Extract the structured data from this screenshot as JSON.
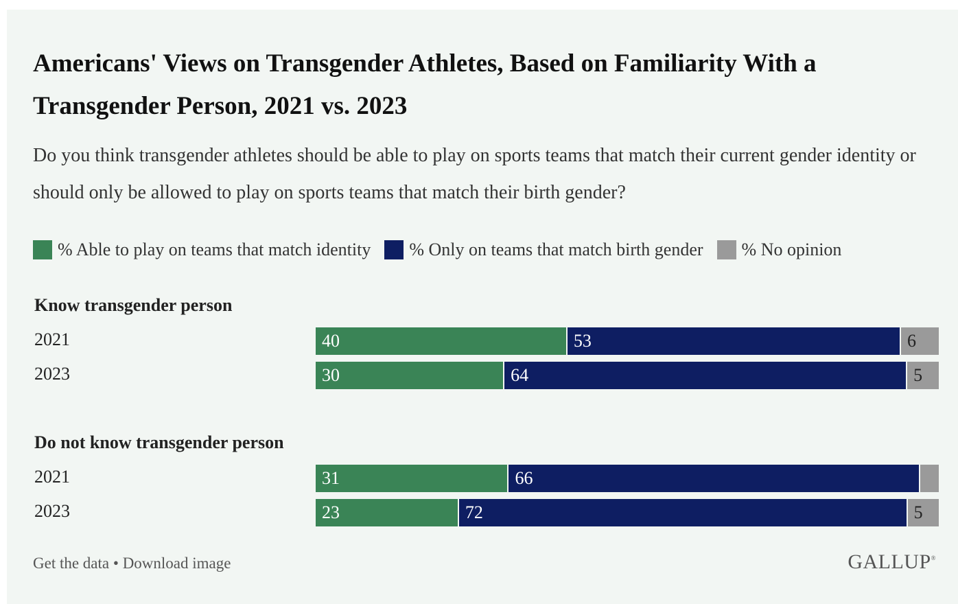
{
  "chart_data": {
    "type": "bar",
    "orientation": "horizontal",
    "stacked": true,
    "title": "Americans' Views on Transgender Athletes, Based on Familiarity With a Transgender Person, 2021 vs. 2023",
    "subtitle": "Do you think transgender athletes should be able to play on sports teams that match their current gender identity or should only be allowed to play on sports teams that match their birth gender?",
    "legend_position": "top-left",
    "series": [
      {
        "name": "% Able to play on teams that match identity",
        "color": "#3a8456"
      },
      {
        "name": "% Only on teams that match birth gender",
        "color": "#0e1e62"
      },
      {
        "name": "% No opinion",
        "color": "#9a9a9a"
      }
    ],
    "groups": [
      {
        "label": "Know transgender person",
        "rows": [
          {
            "year": "2021",
            "values": [
              40,
              53,
              6
            ],
            "labels": [
              "40",
              "53",
              "6"
            ]
          },
          {
            "year": "2023",
            "values": [
              30,
              64,
              5
            ],
            "labels": [
              "30",
              "64",
              "5"
            ]
          }
        ]
      },
      {
        "label": "Do not know transgender person",
        "rows": [
          {
            "year": "2021",
            "values": [
              31,
              66,
              3
            ],
            "labels": [
              "31",
              "66",
              ""
            ]
          },
          {
            "year": "2023",
            "values": [
              23,
              72,
              5
            ],
            "labels": [
              "23",
              "72",
              "5"
            ]
          }
        ]
      }
    ]
  },
  "footer": {
    "get_data": "Get the data",
    "separator": " • ",
    "download": "Download image",
    "logo": "GALLUP",
    "logo_mark": "®"
  }
}
